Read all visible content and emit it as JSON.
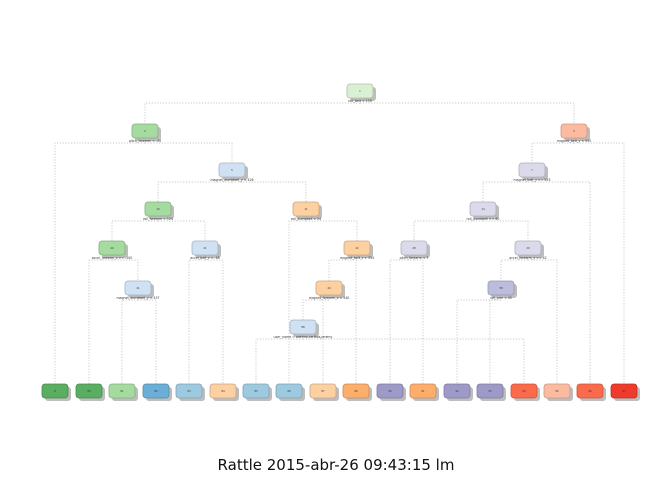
{
  "caption": "Rattle 2015-abr-26 09:43:15 lm",
  "palette": {
    "green_light": "#d9f0d3",
    "green_mid": "#a6dba0",
    "green_dark": "#5aae61",
    "blue_light": "#cfe1f2",
    "blue_mid": "#9ecae1",
    "blue_dark": "#6baed6",
    "orange_light": "#fdd0a2",
    "orange_mid": "#fdae6b",
    "purple_light": "#dadaeb",
    "purple_mid": "#bcbddc",
    "purple_dark": "#9e9ac8",
    "red_light": "#fcbba1",
    "red_mid": "#fb6a4a",
    "red_dark": "#ef3b2c",
    "edge": "#b5b5b5"
  },
  "nodes": [
    {
      "id": "n1",
      "color": "green_light",
      "label": "1",
      "split": "roll_belt < 130"
    },
    {
      "id": "n2",
      "color": "green_mid",
      "label": "2",
      "split": "pitch_forearm < -34"
    },
    {
      "id": "n3",
      "color": "red_light",
      "label": "3",
      "split": "magnet_belt_y < 555"
    },
    {
      "id": "n4",
      "color": "blue_light",
      "label": "5",
      "split": "magnet_dumbbell_y < 426"
    },
    {
      "id": "n5",
      "color": "purple_light",
      "label": "7",
      "split": "magnet_belt_y >= 555"
    },
    {
      "id": "n6",
      "color": "green_mid",
      "label": "10",
      "split": "roll_forearm < 124"
    },
    {
      "id": "n7",
      "color": "orange_light",
      "label": "11",
      "split": "roll_dumbbell < 24"
    },
    {
      "id": "n8",
      "color": "purple_light",
      "label": "14",
      "split": "roll_dumbbell >= 60"
    },
    {
      "id": "n9",
      "color": "green_mid",
      "label": "20",
      "split": "accel_forearm_x >= -100"
    },
    {
      "id": "n10",
      "color": "blue_light",
      "label": "21",
      "split": "accel_belt_z < -18"
    },
    {
      "id": "n11",
      "color": "orange_light",
      "label": "22",
      "split": "magnet_belt_z < 334"
    },
    {
      "id": "n12",
      "color": "purple_light",
      "label": "28",
      "split": "pitch_forearm < 7"
    },
    {
      "id": "n13",
      "color": "purple_light",
      "label": "29",
      "split": "accel_forearm_x >= 42"
    },
    {
      "id": "n14",
      "color": "blue_light",
      "label": "41",
      "split": "magnet_dumbbell_y < 437"
    },
    {
      "id": "n15",
      "color": "orange_light",
      "label": "44",
      "split": "magnet_forearm_z < 340"
    },
    {
      "id": "n16",
      "color": "purple_mid",
      "label": "58",
      "split": "roll_arm < 45"
    },
    {
      "id": "n17",
      "color": "blue_light",
      "label": "88",
      "split": "user_name = adelmo,carlitos,jeremy"
    },
    {
      "id": "l1",
      "color": "green_dark",
      "label": "8"
    },
    {
      "id": "l2",
      "color": "green_dark",
      "label": "80"
    },
    {
      "id": "l3",
      "color": "green_mid",
      "label": "81"
    },
    {
      "id": "l4",
      "color": "blue_dark",
      "label": "82"
    },
    {
      "id": "l5",
      "color": "blue_mid",
      "label": "83"
    },
    {
      "id": "l6",
      "color": "orange_light",
      "label": "84"
    },
    {
      "id": "l7",
      "color": "blue_mid",
      "label": "85"
    },
    {
      "id": "l8",
      "color": "blue_mid",
      "label": "86"
    },
    {
      "id": "l9",
      "color": "orange_light",
      "label": "87"
    },
    {
      "id": "l10",
      "color": "orange_mid",
      "label": "89"
    },
    {
      "id": "l11",
      "color": "purple_dark",
      "label": "90"
    },
    {
      "id": "l12",
      "color": "orange_mid",
      "label": "91"
    },
    {
      "id": "l13",
      "color": "purple_dark",
      "label": "92"
    },
    {
      "id": "l14",
      "color": "purple_dark",
      "label": "93"
    },
    {
      "id": "l15",
      "color": "red_mid",
      "label": "94"
    },
    {
      "id": "l16",
      "color": "red_light",
      "label": "95"
    },
    {
      "id": "l17",
      "color": "red_mid",
      "label": "96"
    },
    {
      "id": "l18",
      "color": "red_dark",
      "label": "97"
    }
  ],
  "edges": [
    [
      "n1",
      "n2"
    ],
    [
      "n1",
      "n3"
    ],
    [
      "n2",
      "l1"
    ],
    [
      "n2",
      "n4"
    ],
    [
      "n3",
      "n5"
    ],
    [
      "n3",
      "l18"
    ],
    [
      "n4",
      "n6"
    ],
    [
      "n4",
      "n7"
    ],
    [
      "n5",
      "n8"
    ],
    [
      "n5",
      "l17"
    ],
    [
      "n6",
      "n9"
    ],
    [
      "n6",
      "n10"
    ],
    [
      "n7",
      "n11"
    ],
    [
      "n7",
      "l8"
    ],
    [
      "n8",
      "n12"
    ],
    [
      "n8",
      "n13"
    ],
    [
      "n9",
      "l2"
    ],
    [
      "n9",
      "n14"
    ],
    [
      "n10",
      "l5"
    ],
    [
      "n10",
      "l6"
    ],
    [
      "n11",
      "n15"
    ],
    [
      "n11",
      "l10"
    ],
    [
      "n12",
      "l12"
    ],
    [
      "n12",
      "l11"
    ],
    [
      "n13",
      "n16"
    ],
    [
      "n13",
      "l16"
    ],
    [
      "n14",
      "l3"
    ],
    [
      "n14",
      "l4"
    ],
    [
      "n15",
      "n17"
    ],
    [
      "n15",
      "l9"
    ],
    [
      "n16",
      "l13"
    ],
    [
      "n16",
      "l14"
    ],
    [
      "n17",
      "l7"
    ],
    [
      "n17",
      "l15"
    ]
  ]
}
